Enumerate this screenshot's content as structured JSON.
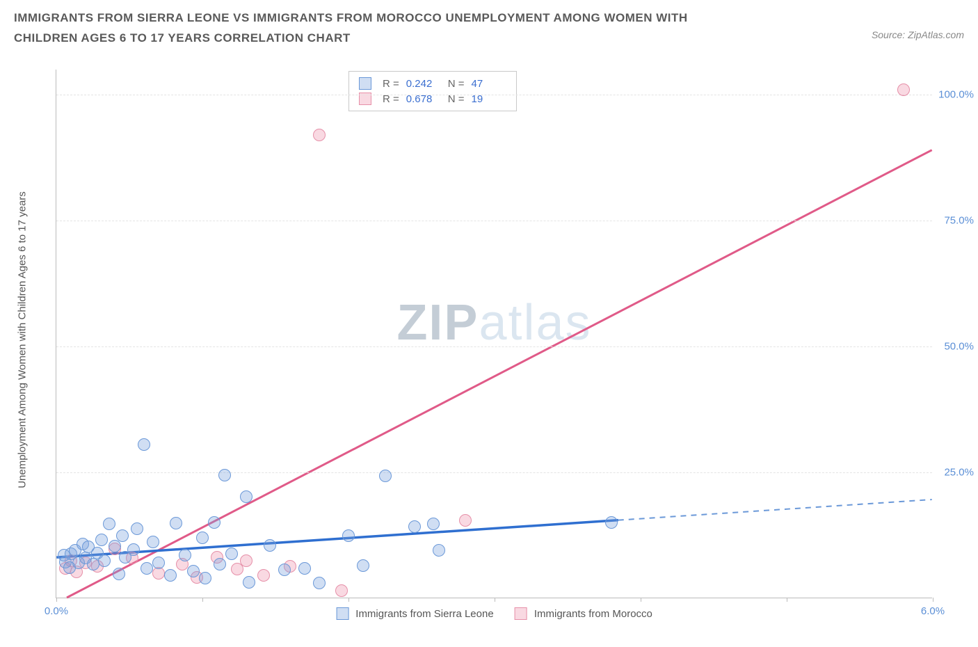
{
  "title": "IMMIGRANTS FROM SIERRA LEONE VS IMMIGRANTS FROM MOROCCO UNEMPLOYMENT AMONG WOMEN WITH CHILDREN AGES 6 TO 17 YEARS CORRELATION CHART",
  "source": "Source: ZipAtlas.com",
  "y_axis_label": "Unemployment Among Women with Children Ages 6 to 17 years",
  "watermark_a": "ZIP",
  "watermark_b": "atlas",
  "legend": {
    "series_a_label": "Immigrants from Sierra Leone",
    "series_b_label": "Immigrants from Morocco"
  },
  "stats": {
    "r_label": "R =",
    "n_label": "N =",
    "a_r": "0.242",
    "a_n": "47",
    "b_r": "0.678",
    "b_n": "19"
  },
  "axes": {
    "x_min": 0.0,
    "x_max": 6.0,
    "y_min": 0.0,
    "y_max": 105.0,
    "x_ticks": [
      0.0,
      1.0,
      2.0,
      3.0,
      4.0,
      5.0,
      6.0
    ],
    "x_tick_labels_show": [
      0.0,
      6.0
    ],
    "x_tick_labels": {
      "0.0": "0.0%",
      "6.0": "6.0%"
    },
    "y_ticks": [
      25.0,
      50.0,
      75.0,
      100.0
    ],
    "y_tick_labels": {
      "25.0": "25.0%",
      "50.0": "50.0%",
      "75.0": "75.0%",
      "100.0": "100.0%"
    }
  },
  "colors": {
    "series_a_fill": "rgba(120,160,220,0.35)",
    "series_a_stroke": "#6a98d8",
    "series_b_fill": "rgba(235,130,160,0.30)",
    "series_b_stroke": "#e68fa8",
    "line_a": "#2f6fd0",
    "line_a_dash": "#6a98d8",
    "line_b": "#e05a88",
    "grid": "#e4e4e4",
    "axis": "#bbbbbb",
    "tick_text": "#5b8fd6",
    "title_text": "#5a5a5a"
  },
  "marker_radius": 9,
  "trend_lines": {
    "a_solid": {
      "x1": 0.0,
      "y1": 8.0,
      "x2": 3.85,
      "y2": 15.4
    },
    "a_dash": {
      "x1": 3.85,
      "y1": 15.4,
      "x2": 6.0,
      "y2": 19.5
    },
    "b": {
      "x1": 0.07,
      "y1": 0.0,
      "x2": 6.0,
      "y2": 89.0
    }
  },
  "series_a_points": [
    {
      "x": 0.05,
      "y": 8.5
    },
    {
      "x": 0.06,
      "y": 7.2
    },
    {
      "x": 0.09,
      "y": 6.1
    },
    {
      "x": 0.1,
      "y": 8.8
    },
    {
      "x": 0.13,
      "y": 9.5
    },
    {
      "x": 0.15,
      "y": 7.0
    },
    {
      "x": 0.18,
      "y": 10.8
    },
    {
      "x": 0.2,
      "y": 8.0
    },
    {
      "x": 0.22,
      "y": 10.2
    },
    {
      "x": 0.25,
      "y": 6.8
    },
    {
      "x": 0.28,
      "y": 9.0
    },
    {
      "x": 0.31,
      "y": 11.6
    },
    {
      "x": 0.33,
      "y": 7.5
    },
    {
      "x": 0.36,
      "y": 14.8
    },
    {
      "x": 0.4,
      "y": 10.4
    },
    {
      "x": 0.43,
      "y": 4.9
    },
    {
      "x": 0.45,
      "y": 12.5
    },
    {
      "x": 0.47,
      "y": 8.1
    },
    {
      "x": 0.53,
      "y": 9.7
    },
    {
      "x": 0.55,
      "y": 13.8
    },
    {
      "x": 0.6,
      "y": 30.5
    },
    {
      "x": 0.62,
      "y": 6.0
    },
    {
      "x": 0.66,
      "y": 11.2
    },
    {
      "x": 0.7,
      "y": 7.0
    },
    {
      "x": 0.78,
      "y": 4.6
    },
    {
      "x": 0.82,
      "y": 14.9
    },
    {
      "x": 0.88,
      "y": 8.5
    },
    {
      "x": 0.94,
      "y": 5.4
    },
    {
      "x": 1.0,
      "y": 12.0
    },
    {
      "x": 1.02,
      "y": 4.0
    },
    {
      "x": 1.08,
      "y": 15.0
    },
    {
      "x": 1.12,
      "y": 6.8
    },
    {
      "x": 1.15,
      "y": 24.5
    },
    {
      "x": 1.2,
      "y": 8.9
    },
    {
      "x": 1.3,
      "y": 20.2
    },
    {
      "x": 1.32,
      "y": 3.2
    },
    {
      "x": 1.46,
      "y": 10.5
    },
    {
      "x": 1.56,
      "y": 5.7
    },
    {
      "x": 1.7,
      "y": 6.0
    },
    {
      "x": 1.8,
      "y": 3.0
    },
    {
      "x": 2.0,
      "y": 12.5
    },
    {
      "x": 2.1,
      "y": 6.5
    },
    {
      "x": 2.25,
      "y": 24.3
    },
    {
      "x": 2.45,
      "y": 14.2
    },
    {
      "x": 2.58,
      "y": 14.8
    },
    {
      "x": 2.62,
      "y": 9.5
    },
    {
      "x": 3.8,
      "y": 15.0
    }
  ],
  "series_b_points": [
    {
      "x": 0.06,
      "y": 6.0
    },
    {
      "x": 0.1,
      "y": 7.4
    },
    {
      "x": 0.14,
      "y": 5.2
    },
    {
      "x": 0.2,
      "y": 7.0
    },
    {
      "x": 0.28,
      "y": 6.3
    },
    {
      "x": 0.4,
      "y": 9.8
    },
    {
      "x": 0.52,
      "y": 8.0
    },
    {
      "x": 0.7,
      "y": 5.0
    },
    {
      "x": 0.86,
      "y": 6.8
    },
    {
      "x": 0.96,
      "y": 4.2
    },
    {
      "x": 1.1,
      "y": 8.2
    },
    {
      "x": 1.24,
      "y": 5.8
    },
    {
      "x": 1.3,
      "y": 7.4
    },
    {
      "x": 1.42,
      "y": 4.5
    },
    {
      "x": 1.6,
      "y": 6.3
    },
    {
      "x": 1.8,
      "y": 92.0
    },
    {
      "x": 1.95,
      "y": 1.5
    },
    {
      "x": 2.8,
      "y": 15.5
    },
    {
      "x": 5.8,
      "y": 101.0
    }
  ]
}
